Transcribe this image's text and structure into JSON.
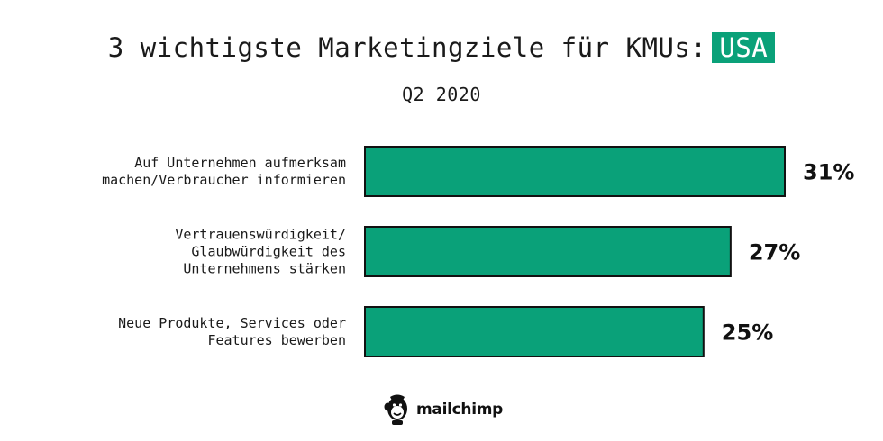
{
  "chart_data": {
    "type": "bar",
    "orientation": "horizontal",
    "title": "3 wichtigste Marketingziele für KMUs:",
    "title_highlight": "USA",
    "subtitle": "Q2 2020",
    "categories": [
      [
        "Auf Unternehmen aufmerksam",
        "machen/Verbraucher informieren"
      ],
      [
        "Vertrauenswürdigkeit/",
        "Glaubwürdigkeit des",
        "Unternehmens stärken"
      ],
      [
        "Neue Produkte, Services oder",
        "Features bewerben"
      ]
    ],
    "values": [
      31,
      27,
      25
    ],
    "value_labels": [
      "31%",
      "27%",
      "25%"
    ],
    "xlim": [
      0,
      31
    ],
    "grid": false,
    "colors": {
      "bar": "#0aa179",
      "bar_outline": "#111111",
      "highlight": "#0aa179"
    }
  },
  "logo": {
    "text": "mailchimp",
    "icon": "freddie-chimp-icon"
  }
}
